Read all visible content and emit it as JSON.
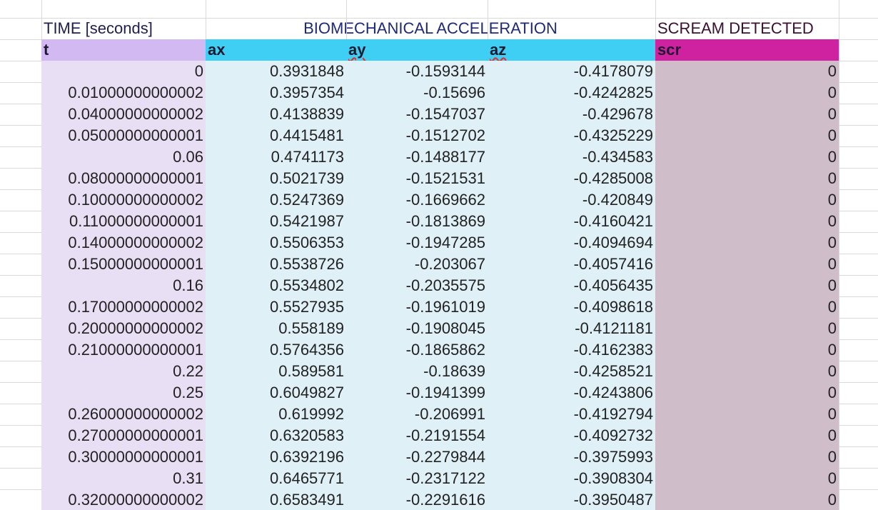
{
  "header": {
    "time": "TIME [seconds]",
    "group": "BIOMECHANICAL ACCELERATION",
    "scream": "SCREAM DETECTED"
  },
  "table": {
    "columns": [
      "t",
      "ax",
      "ay",
      "az",
      "scr"
    ],
    "rows": [
      [
        "0",
        "0.3931848",
        "-0.1593144",
        "-0.4178079",
        "0"
      ],
      [
        "0.01000000000002",
        "0.3957354",
        "-0.15696",
        "-0.4242825",
        "0"
      ],
      [
        "0.04000000000002",
        "0.4138839",
        "-0.1547037",
        "-0.429678",
        "0"
      ],
      [
        "0.05000000000001",
        "0.4415481",
        "-0.1512702",
        "-0.4325229",
        "0"
      ],
      [
        "0.06",
        "0.4741173",
        "-0.1488177",
        "-0.434583",
        "0"
      ],
      [
        "0.08000000000001",
        "0.5021739",
        "-0.1521531",
        "-0.4285008",
        "0"
      ],
      [
        "0.10000000000002",
        "0.5247369",
        "-0.1669662",
        "-0.420849",
        "0"
      ],
      [
        "0.11000000000001",
        "0.5421987",
        "-0.1813869",
        "-0.4160421",
        "0"
      ],
      [
        "0.14000000000002",
        "0.5506353",
        "-0.1947285",
        "-0.4094694",
        "0"
      ],
      [
        "0.15000000000001",
        "0.5538726",
        "-0.203067",
        "-0.4057416",
        "0"
      ],
      [
        "0.16",
        "0.5534802",
        "-0.2035575",
        "-0.4056435",
        "0"
      ],
      [
        "0.17000000000002",
        "0.5527935",
        "-0.1961019",
        "-0.4098618",
        "0"
      ],
      [
        "0.20000000000002",
        "0.558189",
        "-0.1908045",
        "-0.4121181",
        "0"
      ],
      [
        "0.21000000000001",
        "0.5764356",
        "-0.1865862",
        "-0.4162383",
        "0"
      ],
      [
        "0.22",
        "0.589581",
        "-0.18639",
        "-0.4258521",
        "0"
      ],
      [
        "0.25",
        "0.6049827",
        "-0.1941399",
        "-0.4243806",
        "0"
      ],
      [
        "0.26000000000002",
        "0.619992",
        "-0.206991",
        "-0.4192794",
        "0"
      ],
      [
        "0.27000000000001",
        "0.6320583",
        "-0.2191554",
        "-0.4092732",
        "0"
      ],
      [
        "0.30000000000001",
        "0.6392196",
        "-0.2279844",
        "-0.3975993",
        "0"
      ],
      [
        "0.31",
        "0.6465771",
        "-0.2317122",
        "-0.3908304",
        "0"
      ],
      [
        "0.32000000000002",
        "0.6583491",
        "-0.2291616",
        "-0.3950487",
        "0"
      ]
    ]
  }
}
